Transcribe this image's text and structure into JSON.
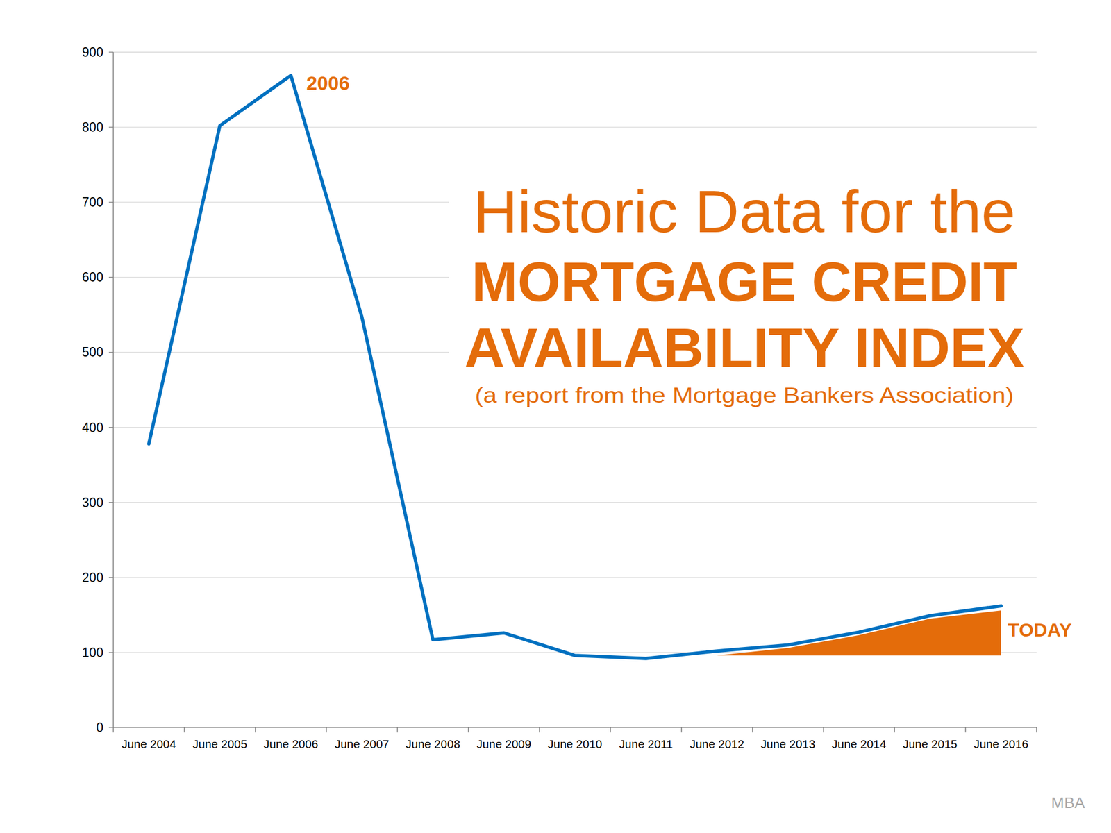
{
  "chart_data": {
    "type": "line",
    "title": [
      "Historic Data for the",
      "MORTGAGE CREDIT",
      "AVAILABILITY INDEX"
    ],
    "subtitle": "(a report from the Mortgage Bankers Association)",
    "categories": [
      "June 2004",
      "June 2005",
      "June 2006",
      "June 2007",
      "June 2008",
      "June 2009",
      "June 2010",
      "June 2011",
      "June 2012",
      "June 2013",
      "June 2014",
      "June 2015",
      "June 2016"
    ],
    "series": [
      {
        "type": "line",
        "color": "#0070c0",
        "values": [
          378,
          802,
          869,
          547,
          117,
          126,
          96,
          92,
          102,
          110,
          127,
          149,
          162
        ]
      },
      {
        "type": "area",
        "color": "#e46c0a",
        "base": 96,
        "values": [
          null,
          null,
          null,
          null,
          null,
          null,
          null,
          null,
          96,
          106,
          123,
          145,
          156
        ]
      }
    ],
    "annotations": [
      "2006",
      "TODAY"
    ],
    "source": "MBA",
    "ylim": [
      0,
      900
    ],
    "yticks": [
      0,
      100,
      200,
      300,
      400,
      500,
      600,
      700,
      800,
      900
    ],
    "grid": true
  }
}
